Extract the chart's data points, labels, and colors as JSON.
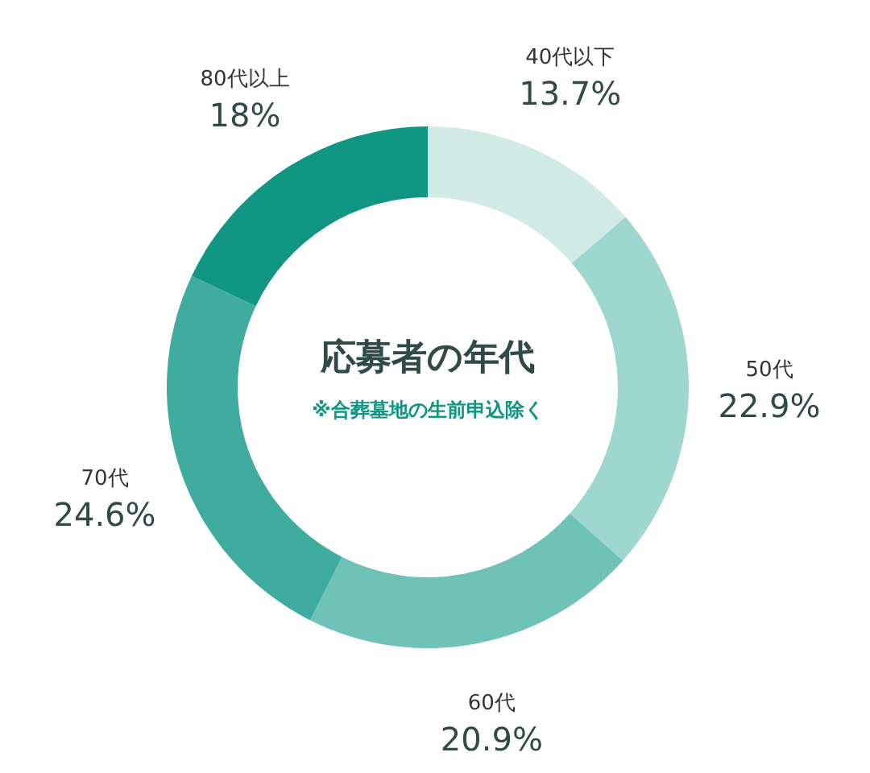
{
  "chart_data": {
    "type": "donut",
    "title": "応募者の年代",
    "subtitle": "※合葬墓地の生前申込除く",
    "categories": [
      "40代以下",
      "50代",
      "60代",
      "70代",
      "80代以上"
    ],
    "values": [
      13.7,
      22.9,
      20.9,
      24.6,
      18
    ],
    "value_labels": [
      "13.7%",
      "22.9%",
      "20.9%",
      "24.6%",
      "18%"
    ],
    "colors": [
      "#d0eae6",
      "#9ed6d0",
      "#6fc2b8",
      "#40ab9f",
      "#119683"
    ]
  }
}
